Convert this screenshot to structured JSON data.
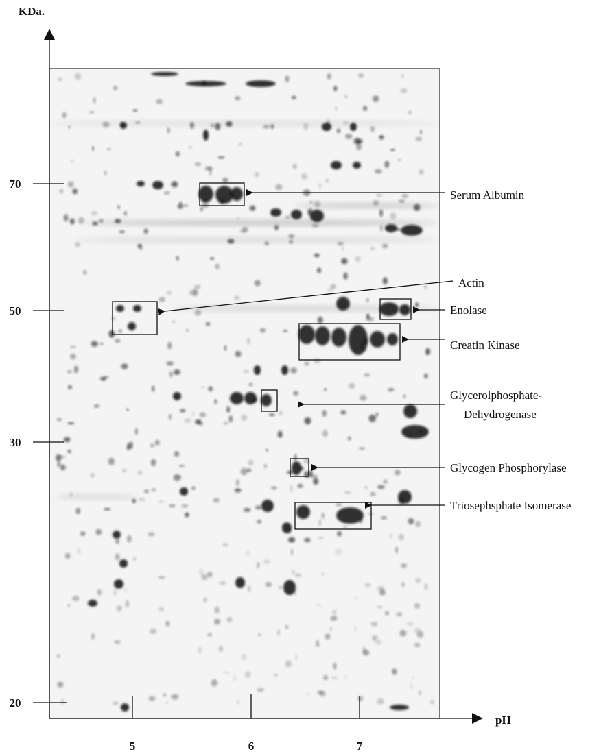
{
  "axes": {
    "y_label": "KDa.",
    "x_label": "pH",
    "y_ticks": [
      "70",
      "50",
      "30",
      "20"
    ],
    "x_ticks": [
      "5",
      "6",
      "7"
    ]
  },
  "annotations": [
    {
      "lines": [
        "Serum Albumin"
      ]
    },
    {
      "lines": [
        "Actin"
      ]
    },
    {
      "lines": [
        "Enolase"
      ]
    },
    {
      "lines": [
        "Creatin Kinase"
      ]
    },
    {
      "lines": [
        "Glycerolphosphate-",
        "Dehydrogenase"
      ]
    },
    {
      "lines": [
        "Glycogen Phosphorylase"
      ]
    },
    {
      "lines": [
        "Triosephsphate Isomerase"
      ]
    }
  ]
}
